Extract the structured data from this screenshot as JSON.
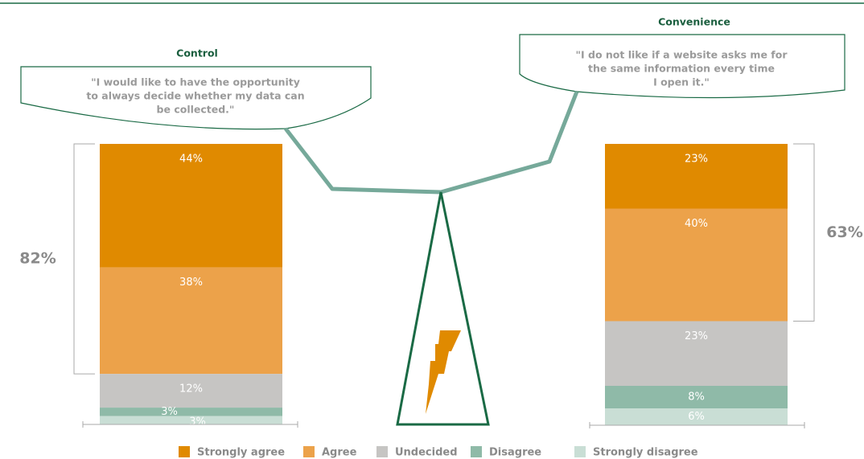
{
  "chart_data": [
    {
      "type": "bar",
      "title": "Control",
      "quote": [
        "\"I would like to have the opportunity",
        "to always decide whether my data can",
        "be collected.\""
      ],
      "annotation": "82%",
      "categories": [
        "Control"
      ],
      "series": [
        {
          "name": "Strongly agree",
          "color": "#e08a00",
          "values": [
            44
          ],
          "value_labels": [
            "44%"
          ]
        },
        {
          "name": "Agree",
          "color": "#eca24a",
          "values": [
            38
          ],
          "value_labels": [
            "38%"
          ]
        },
        {
          "name": "Undecided",
          "color": "#c6c5c3",
          "values": [
            12
          ],
          "value_labels": [
            "12%"
          ]
        },
        {
          "name": "Disagree",
          "color": "#8fbaa8",
          "values": [
            3
          ],
          "value_labels": [
            "3%"
          ]
        },
        {
          "name": "Strongly disagree",
          "color": "#c9ded5",
          "values": [
            3
          ],
          "value_labels": [
            "3%"
          ]
        }
      ],
      "ylim": [
        0,
        100
      ]
    },
    {
      "type": "bar",
      "title": "Convenience",
      "quote": [
        "\"I do not like if a website asks me for",
        "the same information every time",
        "I open it.\""
      ],
      "annotation": "63%",
      "categories": [
        "Convenience"
      ],
      "series": [
        {
          "name": "Strongly agree",
          "color": "#e08a00",
          "values": [
            23
          ],
          "value_labels": [
            "23%"
          ]
        },
        {
          "name": "Agree",
          "color": "#eca24a",
          "values": [
            40
          ],
          "value_labels": [
            "40%"
          ]
        },
        {
          "name": "Undecided",
          "color": "#c6c5c3",
          "values": [
            23
          ],
          "value_labels": [
            "23%"
          ]
        },
        {
          "name": "Disagree",
          "color": "#8fbaa8",
          "values": [
            8
          ],
          "value_labels": [
            "8%"
          ]
        },
        {
          "name": "Strongly disagree",
          "color": "#c9ded5",
          "values": [
            6
          ],
          "value_labels": [
            "6%"
          ]
        }
      ],
      "ylim": [
        0,
        100
      ]
    }
  ]
}
